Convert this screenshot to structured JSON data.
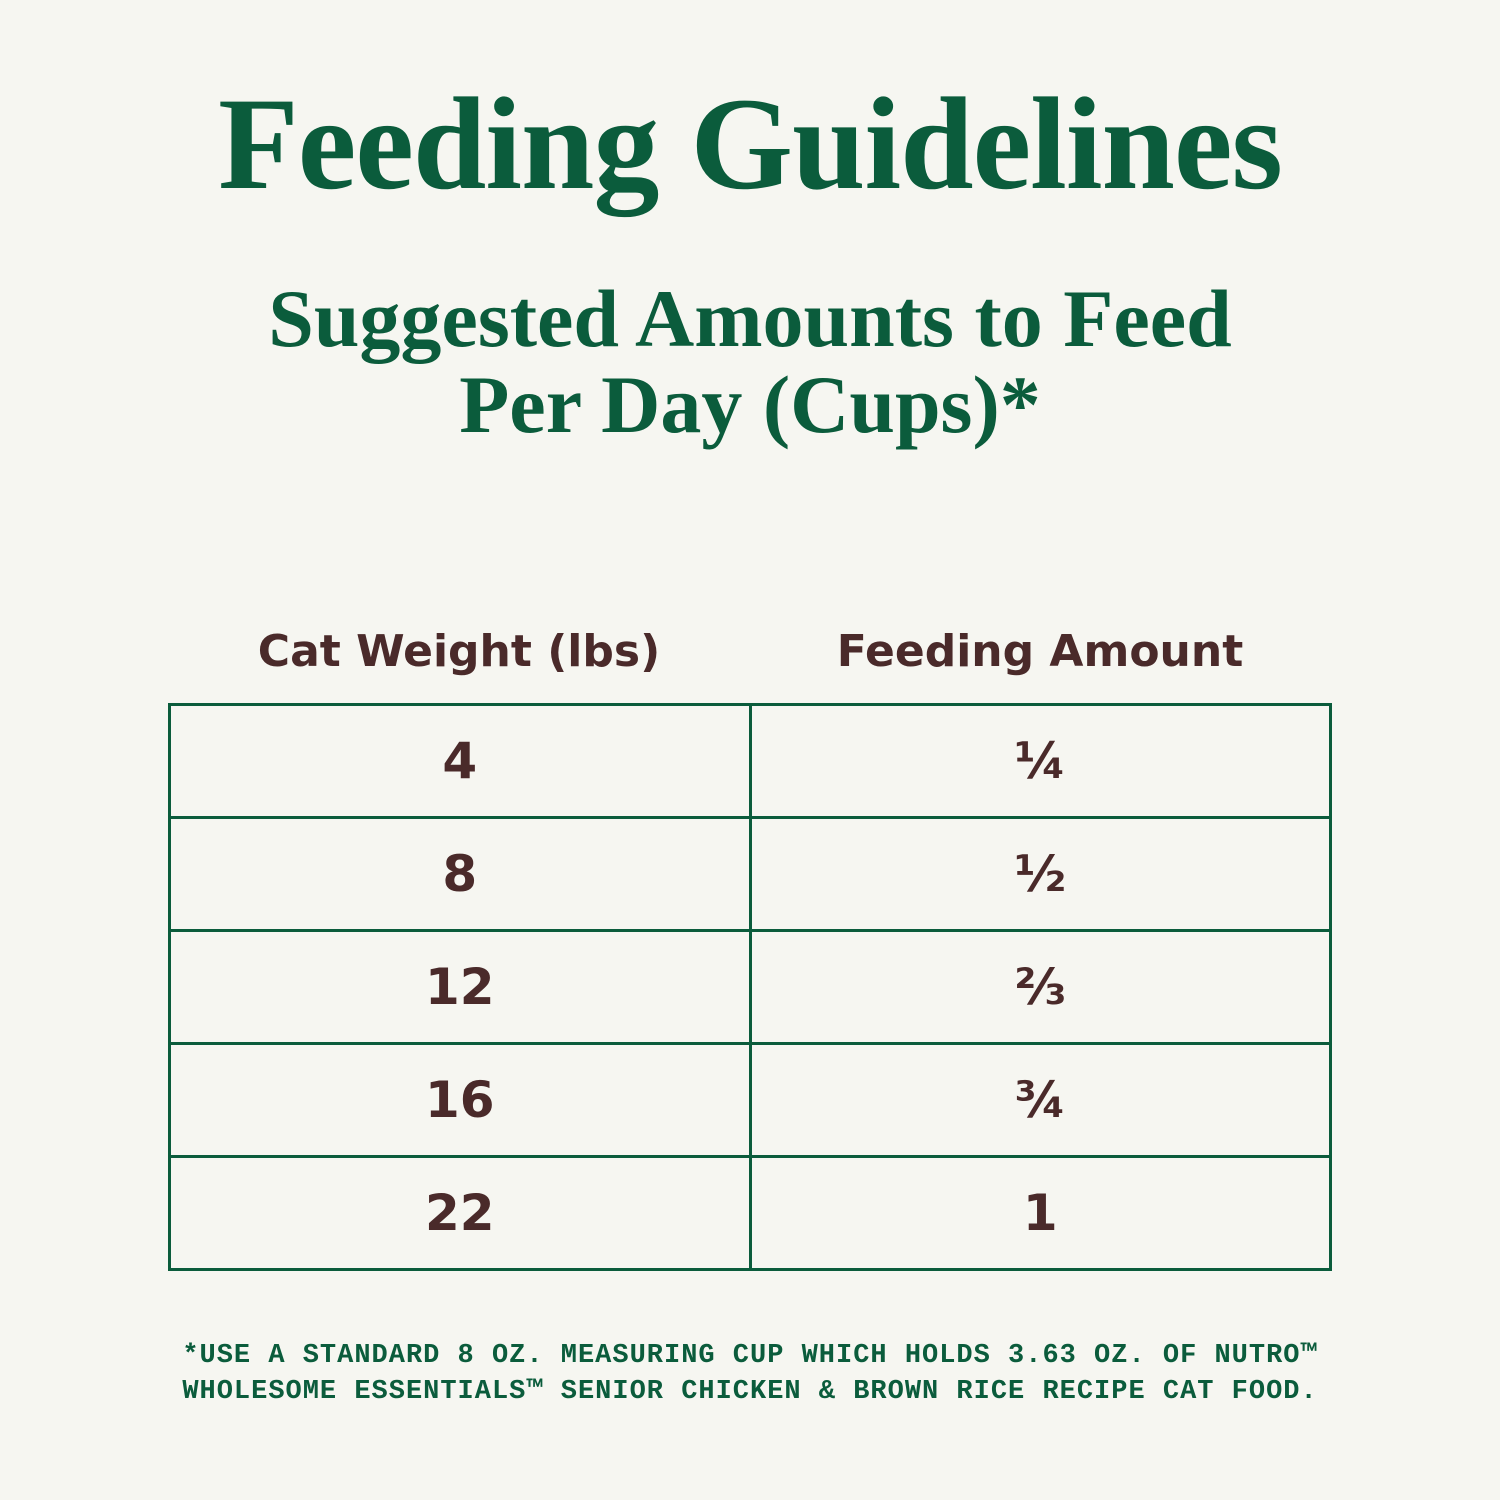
{
  "header": {
    "title": "Feeding Guidelines",
    "subtitle": [
      "Suggested Amounts to Feed",
      "Per Day (Cups)*"
    ]
  },
  "table": {
    "columns": [
      "Cat Weight (lbs)",
      "Feeding Amount"
    ],
    "rows": [
      [
        "4",
        "¼"
      ],
      [
        "8",
        "½"
      ],
      [
        "12",
        "⅔"
      ],
      [
        "16",
        "¾"
      ],
      [
        "22",
        "1"
      ]
    ]
  },
  "footnote": [
    "*USE A STANDARD 8 OZ. MEASURING CUP WHICH HOLDS 3.63 OZ. OF NUTRO™",
    "WHOLESOME ESSENTIALS™ SENIOR CHICKEN & BROWN RICE RECIPE CAT FOOD."
  ]
}
